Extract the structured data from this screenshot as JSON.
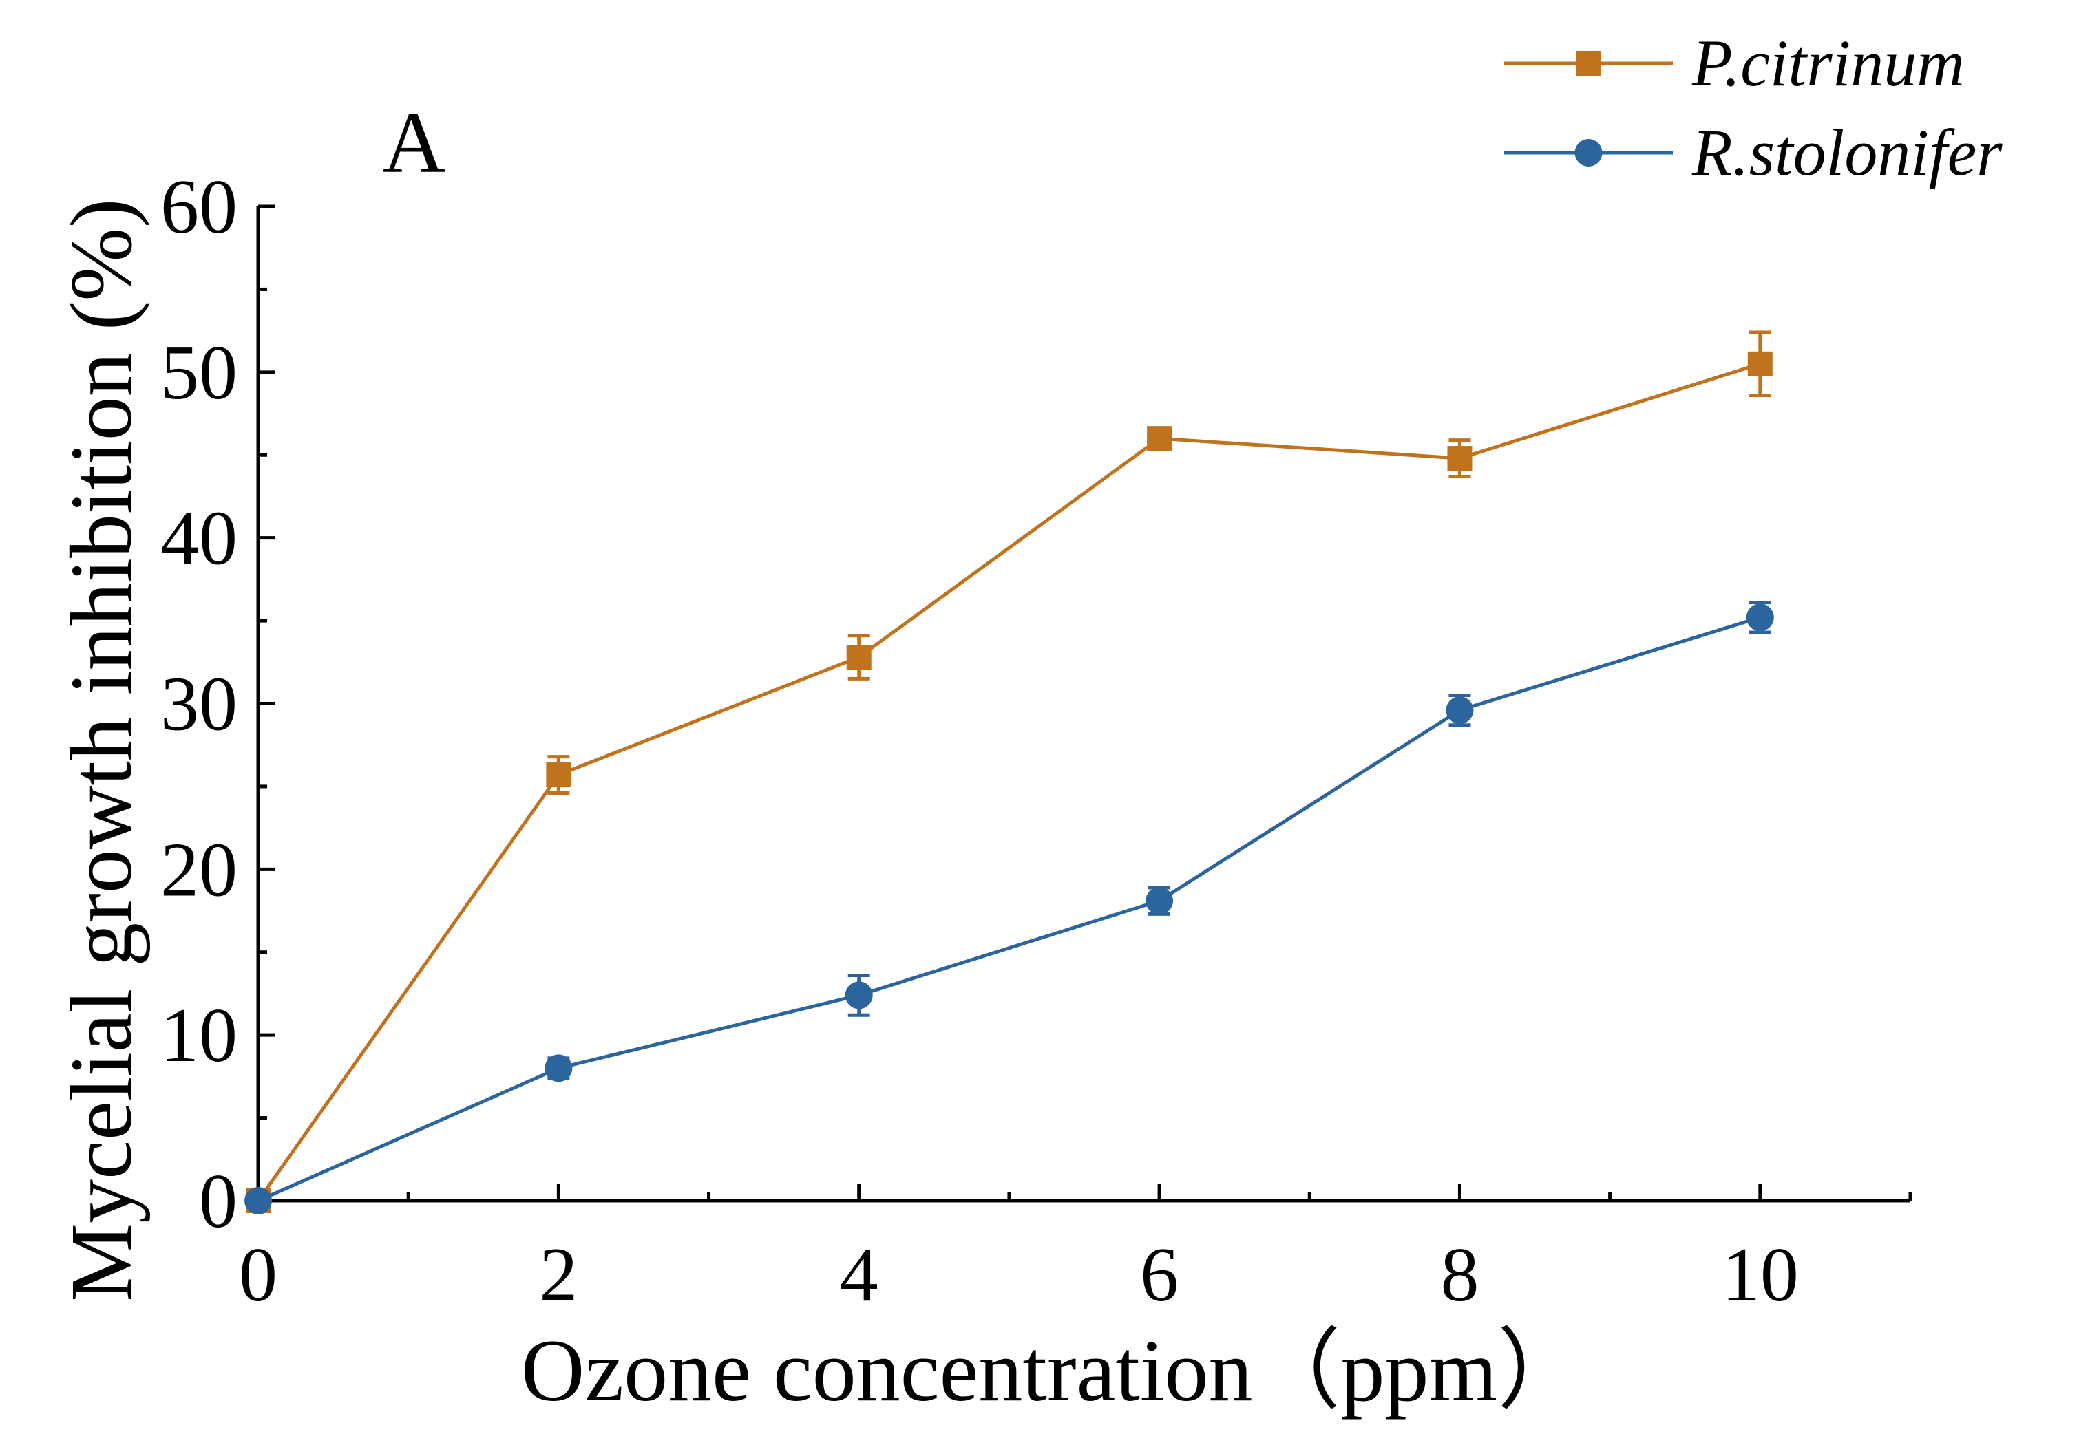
{
  "chart_data": {
    "type": "line",
    "panel_label": "A",
    "xlabel": "Ozone concentration（ppm）",
    "ylabel": "Mycelial growth inhibition (%)",
    "xlim": [
      0,
      11
    ],
    "ylim": [
      0,
      60
    ],
    "x_major_ticks": [
      0,
      2,
      4,
      6,
      8,
      10
    ],
    "x_minor_ticks": [
      1,
      3,
      5,
      7,
      9,
      11
    ],
    "y_major_ticks": [
      0,
      10,
      20,
      30,
      40,
      50,
      60
    ],
    "y_minor_ticks": [
      5,
      15,
      25,
      35,
      45,
      55
    ],
    "x_tick_labels": [
      "0",
      "2",
      "4",
      "6",
      "8",
      "10"
    ],
    "y_tick_labels": [
      "0",
      "10",
      "20",
      "30",
      "40",
      "50",
      "60"
    ],
    "x": [
      0,
      2,
      4,
      6,
      8,
      10
    ],
    "legend_position": "top-right",
    "series": [
      {
        "name": "P.citrinum",
        "marker": "square",
        "color": "#c0731c",
        "values": [
          0,
          25.7,
          32.8,
          46.0,
          44.8,
          50.5
        ],
        "errors": [
          0,
          1.1,
          1.3,
          0.5,
          1.1,
          1.9
        ]
      },
      {
        "name": "R.stolonifer",
        "marker": "circle",
        "color": "#2c659d",
        "values": [
          0,
          8.0,
          12.4,
          18.1,
          29.6,
          35.2
        ],
        "errors": [
          0,
          0.6,
          1.2,
          0.8,
          0.9,
          0.9
        ]
      }
    ]
  }
}
